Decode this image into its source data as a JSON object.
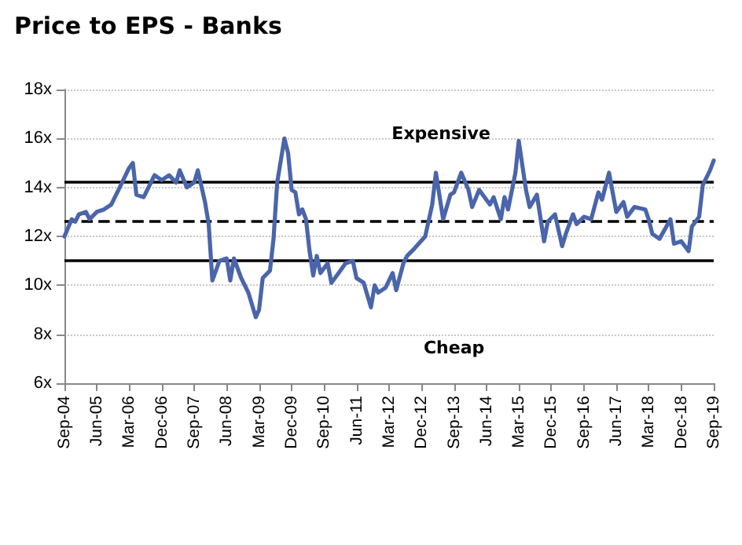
{
  "chart_data": {
    "type": "line",
    "title": "Price to EPS - Banks",
    "x": [
      "2004-09",
      "2004-11",
      "2004-12",
      "2005-01",
      "2005-03",
      "2005-04",
      "2005-06",
      "2005-08",
      "2005-10",
      "2005-12",
      "2006-03",
      "2006-04",
      "2006-05",
      "2006-07",
      "2006-08",
      "2006-10",
      "2006-12",
      "2007-02",
      "2007-04",
      "2007-05",
      "2007-07",
      "2007-09",
      "2007-10",
      "2007-12",
      "2008-01",
      "2008-02",
      "2008-04",
      "2008-06",
      "2008-07",
      "2008-08",
      "2008-10",
      "2008-12",
      "2009-02",
      "2009-03",
      "2009-04",
      "2009-06",
      "2009-07",
      "2009-08",
      "2009-10",
      "2009-11",
      "2009-12",
      "2010-01",
      "2010-02",
      "2010-03",
      "2010-04",
      "2010-05",
      "2010-06",
      "2010-07",
      "2010-08",
      "2010-10",
      "2010-11",
      "2011-01",
      "2011-03",
      "2011-05",
      "2011-06",
      "2011-08",
      "2011-10",
      "2011-11",
      "2011-12",
      "2012-02",
      "2012-04",
      "2012-05",
      "2012-07",
      "2012-08",
      "2012-10",
      "2013-01",
      "2013-03",
      "2013-04",
      "2013-06",
      "2013-08",
      "2013-09",
      "2013-11",
      "2014-01",
      "2014-02",
      "2014-04",
      "2014-07",
      "2014-08",
      "2014-10",
      "2014-11",
      "2014-12",
      "2015-02",
      "2015-03",
      "2015-05",
      "2015-06",
      "2015-08",
      "2015-10",
      "2015-11",
      "2016-01",
      "2016-03",
      "2016-04",
      "2016-06",
      "2016-07",
      "2016-09",
      "2016-11",
      "2017-01",
      "2017-02",
      "2017-04",
      "2017-06",
      "2017-08",
      "2017-09",
      "2017-11",
      "2018-02",
      "2018-03",
      "2018-04",
      "2018-06",
      "2018-09",
      "2018-10",
      "2018-12",
      "2019-02",
      "2019-03",
      "2019-05",
      "2019-06",
      "2019-08",
      "2019-09"
    ],
    "series": [
      {
        "color": "#4a65aa",
        "values": [
          12.0,
          12.7,
          12.6,
          12.9,
          13.0,
          12.7,
          13.0,
          13.1,
          13.3,
          13.9,
          14.8,
          15.0,
          13.7,
          13.6,
          13.9,
          14.5,
          14.3,
          14.5,
          14.2,
          14.7,
          14.0,
          14.2,
          14.7,
          13.4,
          12.5,
          10.2,
          11.0,
          11.1,
          10.2,
          11.1,
          10.3,
          9.7,
          8.7,
          9.0,
          10.3,
          10.6,
          11.9,
          14.2,
          16.0,
          15.4,
          13.9,
          13.8,
          12.9,
          13.1,
          12.7,
          11.4,
          10.4,
          11.2,
          10.5,
          10.9,
          10.1,
          10.5,
          10.9,
          11.0,
          10.3,
          10.1,
          9.1,
          10.0,
          9.7,
          9.9,
          10.5,
          9.8,
          10.9,
          11.2,
          11.5,
          12.0,
          13.3,
          14.6,
          12.7,
          13.7,
          13.8,
          14.6,
          13.9,
          13.2,
          13.9,
          13.3,
          13.6,
          12.7,
          13.6,
          13.1,
          14.6,
          15.9,
          13.9,
          13.2,
          13.7,
          11.8,
          12.6,
          12.9,
          11.6,
          12.1,
          12.9,
          12.5,
          12.8,
          12.7,
          13.8,
          13.5,
          14.6,
          13.0,
          13.4,
          12.8,
          13.2,
          13.1,
          12.7,
          12.1,
          11.9,
          12.7,
          11.7,
          11.8,
          11.4,
          12.4,
          12.8,
          14.1,
          14.7,
          15.1
        ]
      }
    ],
    "xlim": [
      "2004-09",
      "2019-09"
    ],
    "xticks": [
      {
        "value": "2004-09",
        "label": "Sep-04"
      },
      {
        "value": "2005-06",
        "label": "Jun-05"
      },
      {
        "value": "2006-03",
        "label": "Mar-06"
      },
      {
        "value": "2006-12",
        "label": "Dec-06"
      },
      {
        "value": "2007-09",
        "label": "Sep-07"
      },
      {
        "value": "2008-06",
        "label": "Jun-08"
      },
      {
        "value": "2009-03",
        "label": "Mar-09"
      },
      {
        "value": "2009-12",
        "label": "Dec-09"
      },
      {
        "value": "2010-09",
        "label": "Sep-10"
      },
      {
        "value": "2011-06",
        "label": "Jun-11"
      },
      {
        "value": "2012-03",
        "label": "Mar-12"
      },
      {
        "value": "2012-12",
        "label": "Dec-12"
      },
      {
        "value": "2013-09",
        "label": "Sep-13"
      },
      {
        "value": "2014-06",
        "label": "Jun-14"
      },
      {
        "value": "2015-03",
        "label": "Mar-15"
      },
      {
        "value": "2015-12",
        "label": "Dec-15"
      },
      {
        "value": "2016-09",
        "label": "Sep-16"
      },
      {
        "value": "2017-06",
        "label": "Jun-17"
      },
      {
        "value": "2018-03",
        "label": "Mar-18"
      },
      {
        "value": "2018-12",
        "label": "Dec-18"
      },
      {
        "value": "2019-09",
        "label": "Sep-19"
      }
    ],
    "ylim": [
      6,
      18
    ],
    "yticks": [
      {
        "value": 6,
        "label": "6x"
      },
      {
        "value": 8,
        "label": "8x"
      },
      {
        "value": 10,
        "label": "10x"
      },
      {
        "value": 12,
        "label": "12x"
      },
      {
        "value": 14,
        "label": "14x"
      },
      {
        "value": 16,
        "label": "16x"
      },
      {
        "value": 18,
        "label": "18x"
      }
    ],
    "ref_lines": [
      {
        "axis": "y",
        "value": 14.2,
        "color": "#000000",
        "line_style": "solid"
      },
      {
        "axis": "y",
        "value": 12.6,
        "color": "#000000",
        "line_style": "dashed"
      },
      {
        "axis": "y",
        "value": 11.05,
        "color": "#000000",
        "line_style": "solid"
      }
    ],
    "annotations": [
      "Expensive",
      "Cheap"
    ],
    "grid": "y",
    "marker": "none",
    "line_style": "solid"
  }
}
